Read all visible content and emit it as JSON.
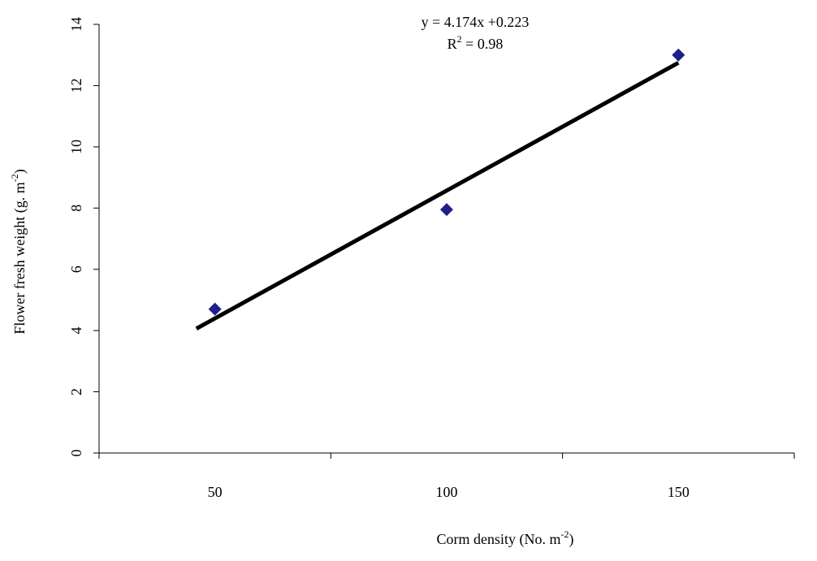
{
  "chart_data": {
    "type": "scatter",
    "title": "",
    "xlabel": {
      "prefix": "Corm density (No. m",
      "sup": "-2",
      "suffix": ")"
    },
    "ylabel": {
      "prefix": "Flower fresh weight (g. m",
      "sup": "-2",
      "suffix": ")"
    },
    "x_categories": [
      "50",
      "100",
      "150"
    ],
    "y_ticks": [
      0,
      2,
      4,
      6,
      8,
      10,
      12,
      14
    ],
    "ylim": [
      0,
      14
    ],
    "grid": false,
    "series": [
      {
        "marker": "diamond",
        "color": "#1f1f8a",
        "points": [
          {
            "x": "50",
            "y": 4.7
          },
          {
            "x": "100",
            "y": 7.95
          },
          {
            "x": "150",
            "y": 13.0
          }
        ]
      }
    ],
    "trendline": {
      "type": "linear",
      "slope": 4.174,
      "intercept": 0.223,
      "color": "#000000",
      "x_start": 0.92,
      "x_end": 3.0
    },
    "annotations": {
      "equation": "y = 4.174x +0.223",
      "r2_prefix": "R",
      "r2_sup": "2",
      "r2_value": " =  0.98"
    }
  }
}
